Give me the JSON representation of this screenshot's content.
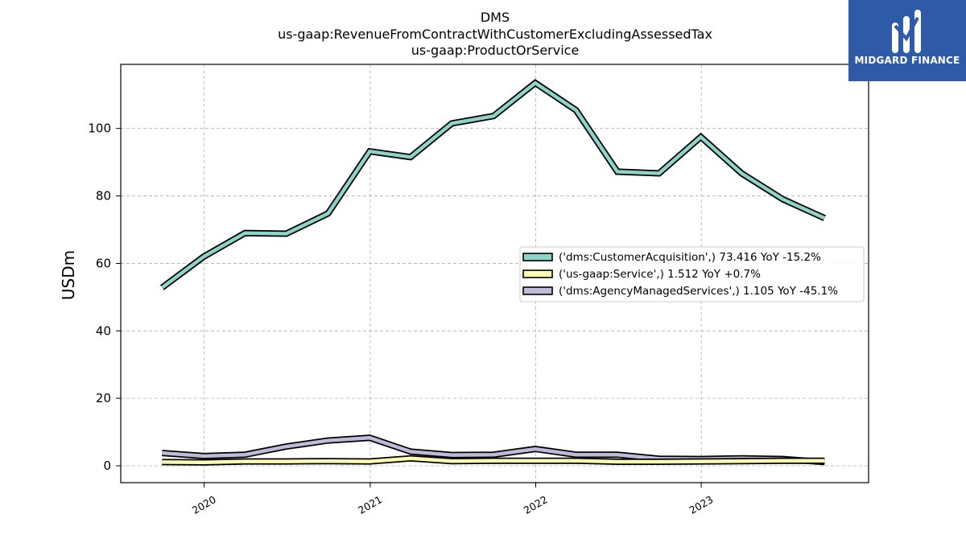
{
  "brand": {
    "name": "MIDGARD FINANCE",
    "icon": "midgard-logo-icon",
    "color": "#2f5aa8"
  },
  "chart_data": {
    "type": "line",
    "title_lines": [
      "DMS",
      "us-gaap:RevenueFromContractWithCustomerExcludingAssessedTax",
      "us-gaap:ProductOrService"
    ],
    "xlabel": "",
    "ylabel": "USDm",
    "x_tick_labels": [
      "2020",
      "2021",
      "2022",
      "2023"
    ],
    "x_tick_dates": [
      "2020-01-01",
      "2021-01-01",
      "2022-01-01",
      "2023-01-01"
    ],
    "xlim": [
      "2019-07-01",
      "2024-01-05"
    ],
    "yticks": [
      0,
      20,
      40,
      60,
      80,
      100
    ],
    "ylim": [
      -5,
      119
    ],
    "grid": true,
    "legend_position": "center-right",
    "x": [
      "2019-09-30",
      "2019-12-31",
      "2020-03-31",
      "2020-06-30",
      "2020-09-30",
      "2020-12-31",
      "2021-03-31",
      "2021-06-30",
      "2021-09-30",
      "2021-12-31",
      "2022-03-31",
      "2022-06-30",
      "2022-09-30",
      "2022-12-31",
      "2023-03-31",
      "2023-06-30",
      "2023-09-30"
    ],
    "series": [
      {
        "name": "('dms:CustomerAcquisition',) 73.416 YoY -15.2%",
        "color": "#8dd3c7",
        "values": [
          52.8,
          62.0,
          69.0,
          68.8,
          74.8,
          93.2,
          91.5,
          101.5,
          103.7,
          113.5,
          105.4,
          87.2,
          86.7,
          97.5,
          86.7,
          79.0,
          73.4
        ]
      },
      {
        "name": "('us-gaap:Service',) 1.512 YoY +0.7%",
        "color": "#ffffb3",
        "values": [
          1.1,
          1.0,
          1.3,
          1.3,
          1.4,
          1.3,
          2.2,
          1.4,
          1.5,
          1.5,
          1.5,
          1.2,
          1.2,
          1.3,
          1.4,
          1.5,
          1.5
        ]
      },
      {
        "name": "('dms:AgencyManagedServices',) 1.105 YoY -45.1%",
        "color": "#bebada",
        "values": [
          3.8,
          2.9,
          3.3,
          5.7,
          7.5,
          8.3,
          4.2,
          3.2,
          3.3,
          5.0,
          3.3,
          3.3,
          2.1,
          2.0,
          2.2,
          2.0,
          1.1
        ]
      }
    ]
  }
}
